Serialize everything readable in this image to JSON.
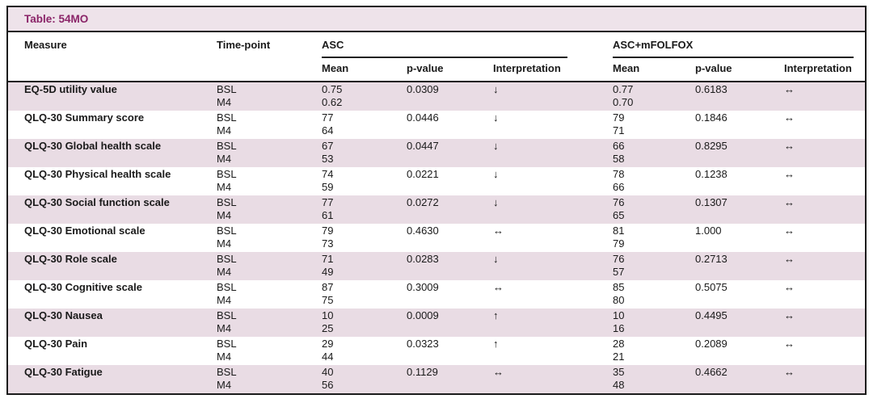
{
  "table": {
    "title": "Table: 54MO",
    "columns": {
      "measure": "Measure",
      "timepoint": "Time-point",
      "group1": "ASC",
      "group2": "ASC+mFOLFOX",
      "mean": "Mean",
      "pvalue": "p-value",
      "interpretation": "Interpretation"
    },
    "timepoints": [
      "BSL",
      "M4"
    ],
    "colors": {
      "shaded_row": "#e9dce4",
      "title_bg": "#eee3ea",
      "title_text": "#8a2468",
      "border": "#1c1c1c"
    },
    "rows": [
      {
        "measure": "EQ-5D utility value",
        "asc": {
          "mean_bsl": "0.75",
          "mean_m4": "0.62",
          "p": "0.0309",
          "interp": "↓"
        },
        "folfox": {
          "mean_bsl": "0.77",
          "mean_m4": "0.70",
          "p": "0.6183",
          "interp": "↔"
        }
      },
      {
        "measure": "QLQ-30 Summary score",
        "asc": {
          "mean_bsl": "77",
          "mean_m4": "64",
          "p": "0.0446",
          "interp": "↓"
        },
        "folfox": {
          "mean_bsl": "79",
          "mean_m4": "71",
          "p": "0.1846",
          "interp": "↔"
        }
      },
      {
        "measure": "QLQ-30 Global health scale",
        "asc": {
          "mean_bsl": "67",
          "mean_m4": "53",
          "p": "0.0447",
          "interp": "↓"
        },
        "folfox": {
          "mean_bsl": "66",
          "mean_m4": "58",
          "p": "0.8295",
          "interp": "↔"
        }
      },
      {
        "measure": "QLQ-30 Physical health scale",
        "asc": {
          "mean_bsl": "74",
          "mean_m4": "59",
          "p": "0.0221",
          "interp": "↓"
        },
        "folfox": {
          "mean_bsl": "78",
          "mean_m4": "66",
          "p": "0.1238",
          "interp": "↔"
        }
      },
      {
        "measure": "QLQ-30 Social function scale",
        "asc": {
          "mean_bsl": "77",
          "mean_m4": "61",
          "p": "0.0272",
          "interp": "↓"
        },
        "folfox": {
          "mean_bsl": "76",
          "mean_m4": "65",
          "p": "0.1307",
          "interp": "↔"
        }
      },
      {
        "measure": "QLQ-30 Emotional scale",
        "asc": {
          "mean_bsl": "79",
          "mean_m4": "73",
          "p": "0.4630",
          "interp": "↔"
        },
        "folfox": {
          "mean_bsl": "81",
          "mean_m4": "79",
          "p": "1.000",
          "interp": "↔"
        }
      },
      {
        "measure": "QLQ-30 Role scale",
        "asc": {
          "mean_bsl": "71",
          "mean_m4": "49",
          "p": "0.0283",
          "interp": "↓"
        },
        "folfox": {
          "mean_bsl": "76",
          "mean_m4": "57",
          "p": "0.2713",
          "interp": "↔"
        }
      },
      {
        "measure": "QLQ-30 Cognitive scale",
        "asc": {
          "mean_bsl": "87",
          "mean_m4": "75",
          "p": "0.3009",
          "interp": "↔"
        },
        "folfox": {
          "mean_bsl": "85",
          "mean_m4": "80",
          "p": "0.5075",
          "interp": "↔"
        }
      },
      {
        "measure": "QLQ-30 Nausea",
        "asc": {
          "mean_bsl": "10",
          "mean_m4": "25",
          "p": "0.0009",
          "interp": "↑"
        },
        "folfox": {
          "mean_bsl": "10",
          "mean_m4": "16",
          "p": "0.4495",
          "interp": "↔"
        }
      },
      {
        "measure": "QLQ-30 Pain",
        "asc": {
          "mean_bsl": "29",
          "mean_m4": "44",
          "p": "0.0323",
          "interp": "↑"
        },
        "folfox": {
          "mean_bsl": "28",
          "mean_m4": "21",
          "p": "0.2089",
          "interp": "↔"
        }
      },
      {
        "measure": "QLQ-30 Fatigue",
        "asc": {
          "mean_bsl": "40",
          "mean_m4": "56",
          "p": "0.1129",
          "interp": "↔"
        },
        "folfox": {
          "mean_bsl": "35",
          "mean_m4": "48",
          "p": "0.4662",
          "interp": "↔"
        }
      }
    ]
  }
}
